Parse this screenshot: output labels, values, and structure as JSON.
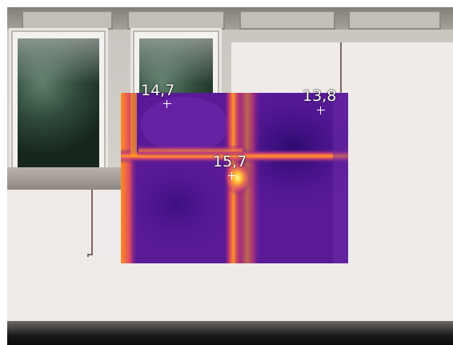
{
  "thermal_readings": {
    "point_left": "14,7",
    "point_right": "13,8",
    "point_center": "15,7"
  },
  "colors": {
    "thermal_cold": "#4d1390",
    "thermal_warm": "#ff8c00",
    "thermal_hot": "#ffff70",
    "wall": "#eeebe9"
  }
}
